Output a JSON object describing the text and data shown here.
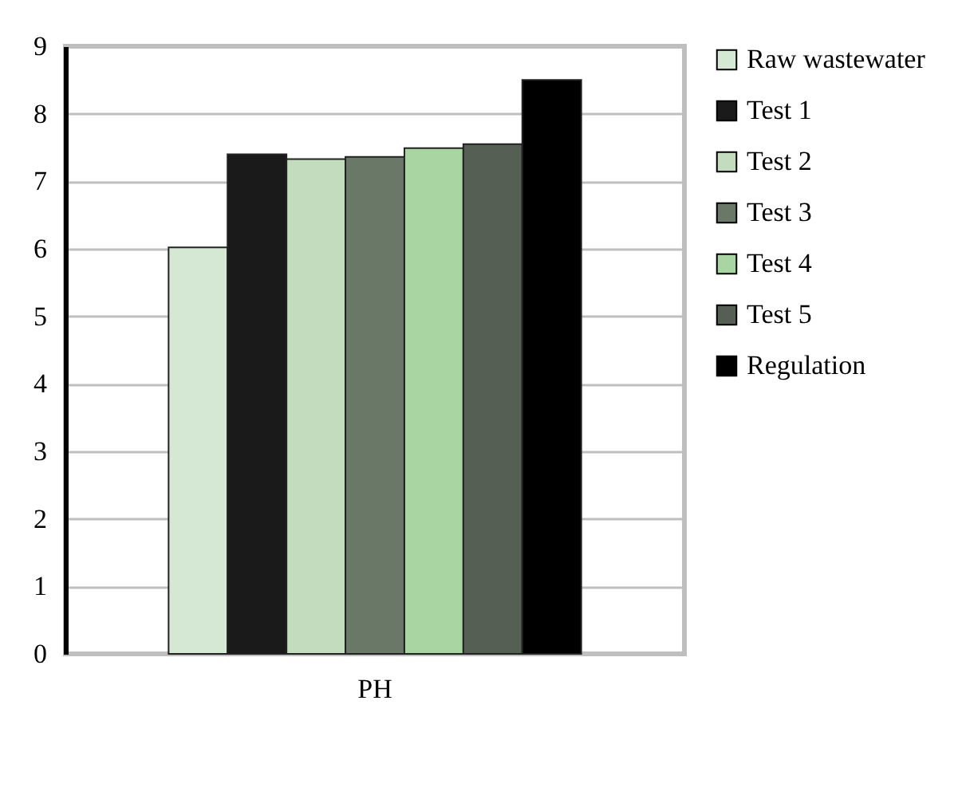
{
  "chart_data": {
    "type": "bar",
    "categories": [
      "PH"
    ],
    "series": [
      {
        "name": "Raw wastewater",
        "color": "#d5e8d4",
        "values": [
          6.02
        ]
      },
      {
        "name": "Test 1",
        "color": "#1a1a1a",
        "values": [
          7.4
        ]
      },
      {
        "name": "Test  2",
        "color": "#c3dcbe",
        "values": [
          7.33
        ]
      },
      {
        "name": "Test  3",
        "color": "#6a7868",
        "values": [
          7.36
        ]
      },
      {
        "name": "Test  4",
        "color": "#a8d5a2",
        "values": [
          7.49
        ]
      },
      {
        "name": "Test 5",
        "color": "#555f53",
        "values": [
          7.55
        ]
      },
      {
        "name": "Regulation",
        "color": "#000000",
        "values": [
          8.5
        ]
      }
    ],
    "ylim": [
      0,
      9
    ],
    "yticks": [
      0,
      1,
      2,
      3,
      4,
      5,
      6,
      7,
      8,
      9
    ],
    "grid": "y",
    "legend": "right"
  }
}
